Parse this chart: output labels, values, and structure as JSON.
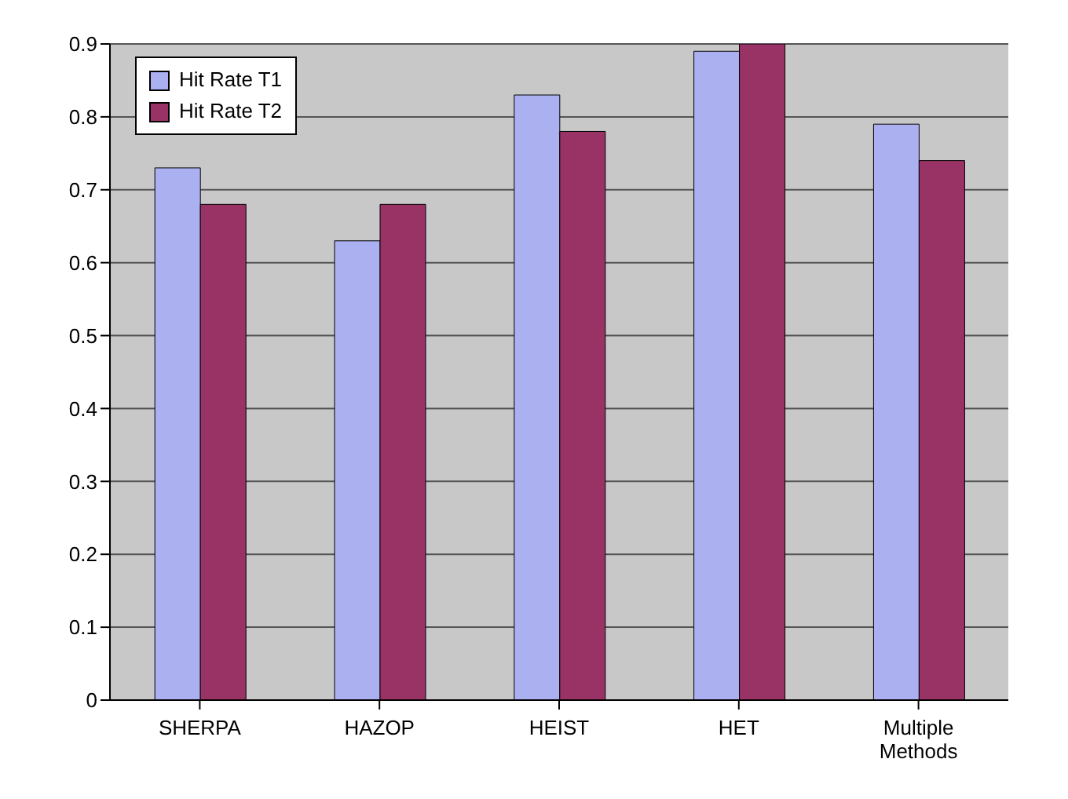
{
  "chart_data": {
    "type": "bar",
    "categories": [
      "SHERPA",
      "HAZOP",
      "HEIST",
      "HET",
      "Multiple Methods"
    ],
    "series": [
      {
        "name": "Hit Rate T1",
        "color": "#aab0f0",
        "values": [
          0.73,
          0.63,
          0.83,
          0.89,
          0.79
        ]
      },
      {
        "name": "Hit Rate T2",
        "color": "#993366",
        "values": [
          0.68,
          0.68,
          0.78,
          0.9,
          0.74
        ]
      }
    ],
    "ylim": [
      0,
      0.9
    ],
    "yticks": [
      0,
      0.1,
      0.2,
      0.3,
      0.4,
      0.5,
      0.6,
      0.7,
      0.8,
      0.9
    ],
    "grid": "y",
    "legend": "top left"
  }
}
